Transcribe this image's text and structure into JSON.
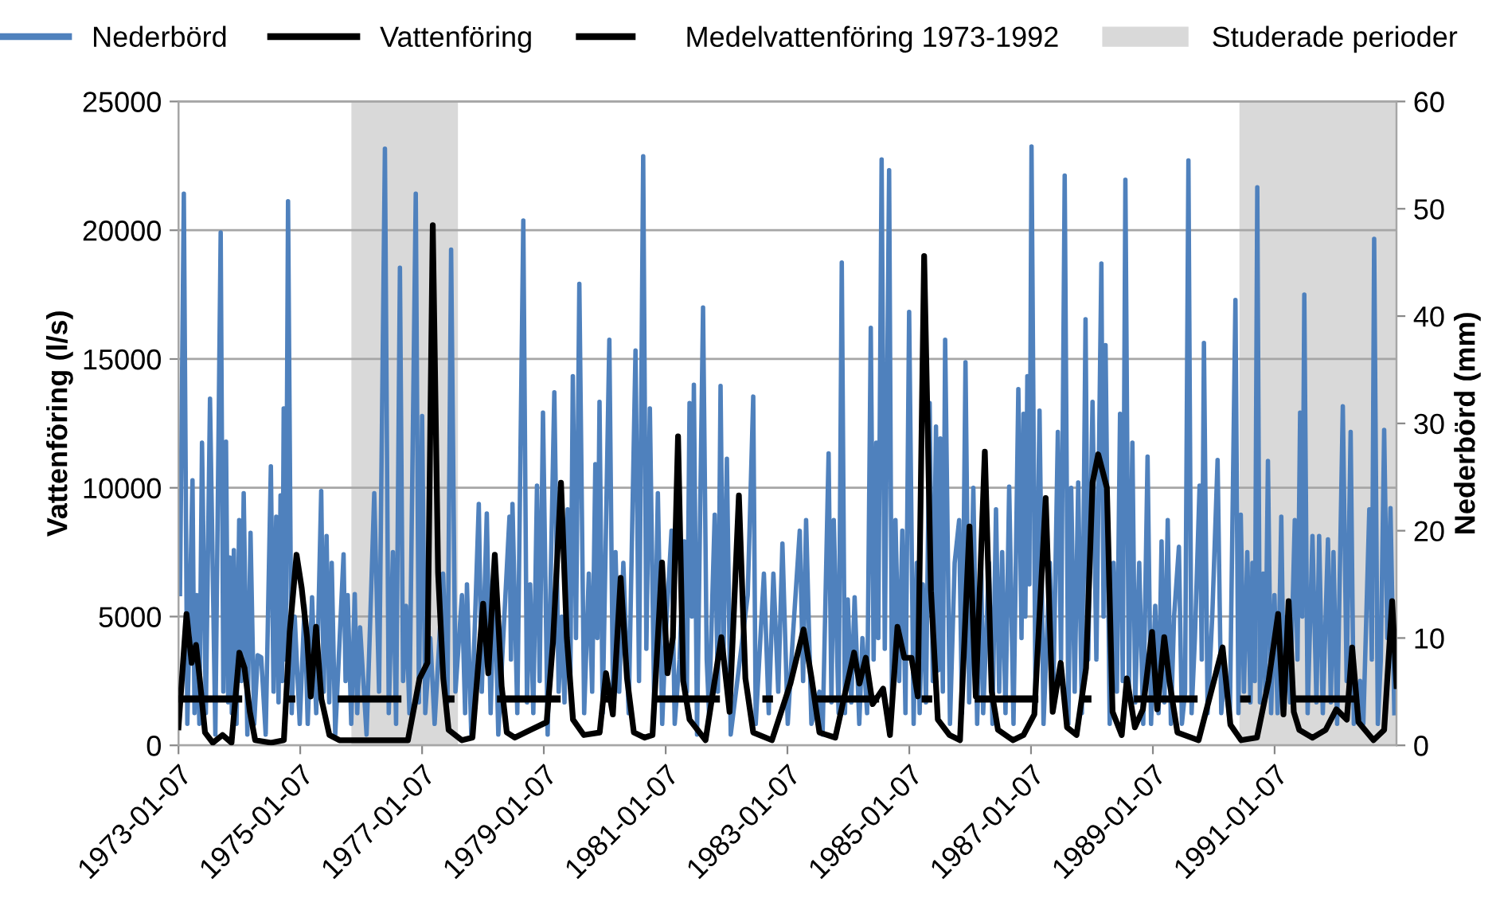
{
  "chart_data": {
    "type": "line",
    "ylabel": "Vattenföring (l/s)",
    "y2label": "Nederbörd (mm)",
    "xlim": [
      "1973-01-07",
      "1993-01-07"
    ],
    "xticks": [
      {
        "value": "1973-01-07",
        "label": "1973-01-07"
      },
      {
        "value": "1975-01-07",
        "label": "1975-01-07"
      },
      {
        "value": "1977-01-07",
        "label": "1977-01-07"
      },
      {
        "value": "1979-01-07",
        "label": "1979-01-07"
      },
      {
        "value": "1981-01-07",
        "label": "1981-01-07"
      },
      {
        "value": "1983-01-07",
        "label": "1983-01-07"
      },
      {
        "value": "1985-01-07",
        "label": "1985-01-07"
      },
      {
        "value": "1987-01-07",
        "label": "1987-01-07"
      },
      {
        "value": "1989-01-07",
        "label": "1989-01-07"
      },
      {
        "value": "1991-01-07",
        "label": "1991-01-07"
      }
    ],
    "ylim": [
      0,
      25000
    ],
    "yticks": [
      0,
      5000,
      10000,
      15000,
      20000,
      25000
    ],
    "y2lim": [
      0,
      60
    ],
    "y2ticks": [
      0,
      10,
      20,
      30,
      40,
      50,
      60
    ],
    "grid": "y",
    "legend": "top",
    "bands": [
      {
        "axis": "x",
        "from": "1975-11-10",
        "to": "1977-08-10",
        "label": "Studerade perioder",
        "color": "#d9d9d9"
      },
      {
        "axis": "x",
        "from": "1990-06-10",
        "to": "1993-01-07",
        "color": "#d9d9d9"
      }
    ],
    "series": [
      {
        "name": "Nederbörd",
        "color": "#4f81bd",
        "axis": "y2",
        "line_style": "solid",
        "x": [
          "1973-01-16",
          "1973-02-08",
          "1973-03-01",
          "1973-04-01",
          "1973-04-13",
          "1973-04-26",
          "1973-05-12",
          "1973-05-28",
          "1973-06-20",
          "1973-07-15",
          "1973-08-16",
          "1973-09-17",
          "1973-10-03",
          "1973-10-19",
          "1973-11-01",
          "1973-11-10",
          "1973-11-23",
          "1973-12-05",
          "1973-12-21",
          "1974-01-06",
          "1974-01-19",
          "1974-02-02",
          "1974-02-24",
          "1974-03-15",
          "1974-04-06",
          "1974-04-27",
          "1974-05-18",
          "1974-06-14",
          "1974-07-15",
          "1974-07-31",
          "1974-08-16",
          "1974-08-30",
          "1974-09-11",
          "1974-09-21",
          "1974-09-30",
          "1974-10-12",
          "1974-10-26",
          "1974-11-17",
          "1974-12-05",
          "1975-01-04",
          "1975-02-02",
          "1975-02-21",
          "1975-03-19",
          "1975-04-13",
          "1975-05-13",
          "1975-05-28",
          "1975-06-14",
          "1975-06-30",
          "1975-07-15",
          "1975-08-05",
          "1975-09-24",
          "1975-10-06",
          "1975-10-19",
          "1975-11-09",
          "1975-11-30",
          "1975-12-15",
          "1976-01-01",
          "1976-02-09",
          "1976-03-26",
          "1976-04-24",
          "1976-05-29",
          "1976-06-21",
          "1976-07-16",
          "1976-08-04",
          "1976-08-27",
          "1976-09-15",
          "1976-10-03",
          "1976-10-23",
          "1976-11-30",
          "1976-12-19",
          "1977-01-07",
          "1977-01-26",
          "1977-02-25",
          "1977-03-23",
          "1977-05-13",
          "1977-06-08",
          "1977-06-30",
          "1977-07-26",
          "1977-09-03",
          "1977-09-22",
          "1977-10-03",
          "1977-10-29",
          "1977-12-13",
          "1977-12-31",
          "1978-01-30",
          "1978-02-22",
          "1978-03-17",
          "1978-04-09",
          "1978-06-15",
          "1978-06-24",
          "1978-07-03",
          "1978-08-01",
          "1978-09-06",
          "1978-09-28",
          "1978-10-17",
          "1978-11-05",
          "1978-11-27",
          "1978-12-13",
          "1979-01-02",
          "1979-01-30",
          "1979-03-11",
          "1979-04-06",
          "1979-04-25",
          "1979-05-11",
          "1979-05-30",
          "1979-06-15",
          "1979-06-30",
          "1979-07-19",
          "1979-08-08",
          "1979-09-06",
          "1979-10-04",
          "1979-10-24",
          "1979-11-12",
          "1979-11-24",
          "1979-12-07",
          "1979-12-26",
          "1980-02-04",
          "1980-02-26",
          "1980-03-12",
          "1980-04-03",
          "1980-04-28",
          "1980-05-30",
          "1980-07-10",
          "1980-07-31",
          "1980-08-25",
          "1980-09-13",
          "1980-10-04",
          "1980-10-30",
          "1980-11-21",
          "1980-12-17",
          "1981-01-06",
          "1981-02-11",
          "1981-03-02",
          "1981-03-31",
          "1981-04-28",
          "1981-05-14",
          "1981-05-30",
          "1981-06-13",
          "1981-06-25",
          "1981-07-14",
          "1981-08-19",
          "1981-09-10",
          "1981-09-24",
          "1981-10-28",
          "1981-11-16",
          "1981-12-02",
          "1981-12-19",
          "1982-01-09",
          "1982-02-01",
          "1982-04-13",
          "1982-05-14",
          "1982-06-16",
          "1982-07-01",
          "1982-08-19",
          "1982-09-17",
          "1982-10-15",
          "1982-11-13",
          "1982-12-08",
          "1983-01-09",
          "1983-02-08",
          "1983-03-22",
          "1983-04-11",
          "1983-04-29",
          "1983-05-31",
          "1983-07-18",
          "1983-08-06",
          "1983-09-11",
          "1983-09-28",
          "1983-10-12",
          "1983-11-10",
          "1983-11-29",
          "1983-12-18",
          "1984-01-04",
          "1984-01-25",
          "1984-02-14",
          "1984-03-13",
          "1984-04-01",
          "1984-04-29",
          "1984-05-21",
          "1984-06-07",
          "1984-06-23",
          "1984-07-05",
          "1984-07-25",
          "1984-08-13",
          "1984-09-08",
          "1984-09-25",
          "1984-10-16",
          "1984-11-07",
          "1984-11-26",
          "1984-12-15",
          "1985-01-06",
          "1985-02-02",
          "1985-02-21",
          "1985-03-10",
          "1985-03-29",
          "1985-04-17",
          "1985-05-09",
          "1985-05-28",
          "1985-06-16",
          "1985-06-30",
          "1985-07-12",
          "1985-07-27",
          "1985-08-10",
          "1985-09-08",
          "1985-10-06",
          "1985-11-02",
          "1985-11-19",
          "1985-12-10",
          "1986-01-01",
          "1986-01-26",
          "1986-02-18",
          "1986-03-14",
          "1986-03-26",
          "1986-04-30",
          "1986-05-21",
          "1986-06-11",
          "1986-06-30",
          "1986-07-18",
          "1986-08-07",
          "1986-08-29",
          "1986-09-24",
          "1986-10-23",
          "1986-11-11",
          "1986-11-23",
          "1986-12-04",
          "1986-12-16",
          "1986-12-28",
          "1987-01-10",
          "1987-02-03",
          "1987-02-27",
          "1987-03-23",
          "1987-04-30",
          "1987-05-21",
          "1987-06-17",
          "1987-07-06",
          "1987-07-28",
          "1987-08-19",
          "1987-09-05",
          "1987-09-26",
          "1987-10-17",
          "1987-11-08",
          "1987-11-30",
          "1987-12-16",
          "1988-01-11",
          "1988-02-03",
          "1988-03-04",
          "1988-03-17",
          "1988-03-29",
          "1988-04-23",
          "1988-05-16",
          "1988-06-05",
          "1988-06-24",
          "1988-07-10",
          "1988-07-26",
          "1988-08-16",
          "1988-09-06",
          "1988-09-23",
          "1988-10-17",
          "1988-11-10",
          "1988-12-06",
          "1988-12-27",
          "1989-01-21",
          "1989-02-10",
          "1989-02-28",
          "1989-03-17",
          "1989-04-06",
          "1989-04-25",
          "1989-05-14",
          "1989-06-12",
          "1989-06-30",
          "1989-07-19",
          "1989-08-08",
          "1989-08-27",
          "1989-09-16",
          "1989-10-14",
          "1989-10-27",
          "1989-11-09",
          "1989-12-01",
          "1989-12-29",
          "1990-01-30",
          "1990-02-21",
          "1990-03-14",
          "1990-04-13",
          "1990-05-17",
          "1990-06-04",
          "1990-06-18",
          "1990-07-07",
          "1990-07-27",
          "1990-08-15",
          "1990-08-27",
          "1990-09-10",
          "1990-09-25",
          "1990-10-11",
          "1990-10-30",
          "1990-11-12",
          "1990-11-28",
          "1990-12-17",
          "1991-01-06",
          "1991-01-25",
          "1991-02-16",
          "1991-03-02",
          "1991-03-21",
          "1991-04-10",
          "1991-05-08",
          "1991-05-24",
          "1991-06-09",
          "1991-06-22",
          "1991-07-04",
          "1991-07-24",
          "1991-08-22",
          "1991-09-15",
          "1991-10-01",
          "1991-10-23",
          "1991-11-23",
          "1991-12-10",
          "1991-12-26",
          "1992-01-17",
          "1992-02-20",
          "1992-03-14",
          "1992-04-07",
          "1992-04-26",
          "1992-06-03",
          "1992-06-22",
          "1992-07-28",
          "1992-08-12",
          "1992-08-26",
          "1992-09-17",
          "1992-10-05",
          "1992-10-25",
          "1992-11-13",
          "1992-12-02",
          "1992-12-25"
        ],
        "values": [
          14.1,
          51.4,
          2,
          24.7,
          3,
          14,
          2,
          28.2,
          3,
          32.3,
          1,
          47.8,
          5,
          28.3,
          4,
          17.5,
          3,
          18.2,
          2,
          21,
          6,
          23.5,
          1,
          19.8,
          2,
          8.4,
          8.2,
          1,
          26,
          5,
          21.3,
          4,
          23.3,
          6,
          31.4,
          8,
          50.7,
          3,
          12,
          2,
          13,
          2,
          13.8,
          3,
          23.7,
          5,
          19.5,
          4,
          17,
          1,
          17.8,
          6,
          14,
          2,
          14.1,
          3,
          11,
          1,
          23.5,
          5,
          55.6,
          3,
          18,
          2,
          44.5,
          6,
          13,
          3,
          51.4,
          4,
          30.7,
          3,
          10,
          2,
          16,
          4,
          46.2,
          5,
          14,
          3,
          15,
          1,
          22.5,
          5,
          21.6,
          3,
          16,
          1,
          21.3,
          8,
          22.5,
          3,
          48.9,
          4,
          15,
          3,
          24.2,
          6,
          31,
          1,
          32.9,
          5,
          12,
          4,
          22,
          6,
          34.4,
          10,
          43,
          3,
          16,
          5,
          26.2,
          10,
          32,
          3,
          37.8,
          4,
          18,
          5,
          17,
          3,
          36.8,
          6,
          54.9,
          9,
          31.4,
          4,
          23.5,
          2,
          10,
          20,
          2,
          8,
          19,
          5,
          31.9,
          12,
          33.6,
          1,
          40.8,
          8,
          3,
          21.5,
          5,
          33.5,
          8,
          26.7,
          1,
          10,
          14,
          32.5,
          2,
          16,
          3,
          16,
          5,
          18.8,
          2,
          10,
          20,
          6,
          21,
          2,
          5,
          1,
          27.2,
          4,
          21,
          3,
          45,
          3,
          13.6,
          4,
          13.8,
          2,
          10,
          3,
          38.9,
          8,
          28.2,
          10,
          54.6,
          9,
          53.6,
          4,
          21,
          6,
          20,
          3,
          40.4,
          2,
          17,
          3,
          15,
          4,
          31.9,
          6,
          29.7,
          7,
          28.6,
          5,
          37.8,
          2,
          17,
          21,
          3,
          35.7,
          4,
          24,
          2,
          17,
          3,
          17,
          2,
          22,
          5,
          18,
          3,
          24.1,
          2,
          33.2,
          10,
          30.9,
          12,
          34.4,
          15,
          55.8,
          4,
          31.2,
          2,
          17,
          5,
          29.2,
          8,
          53.1,
          2,
          24,
          5,
          24.5,
          3,
          39.7,
          8,
          32,
          8,
          44.9,
          12,
          37.3,
          2,
          17,
          5,
          30.9,
          6,
          52.7,
          5,
          28.2,
          4,
          17,
          2,
          26.9,
          2,
          13,
          3,
          19,
          4,
          21,
          2,
          12,
          18.5,
          2,
          5,
          54.5,
          3,
          10,
          24.2,
          8,
          37.5,
          3,
          12,
          26.6,
          3,
          7,
          2,
          41.5,
          3,
          21.5,
          5,
          18,
          4,
          17,
          6,
          52,
          4,
          16,
          5,
          26.5,
          3,
          14,
          3,
          21.3,
          6,
          12,
          4,
          21,
          8,
          31,
          12,
          42,
          3,
          19.5,
          4,
          19.5,
          3,
          19.2,
          4,
          18,
          2,
          31.6,
          6,
          29.2,
          2,
          6,
          2,
          22,
          8,
          47.2,
          2,
          8,
          29.4,
          10,
          22.1,
          3
        ]
      },
      {
        "name": "Vattenföring",
        "color": "#000000",
        "axis": "y",
        "line_style": "solid",
        "x": [
          "1973-01-07",
          "1973-02-24",
          "1973-03-27",
          "1973-04-22",
          "1973-05-14",
          "1973-06-15",
          "1973-08-01",
          "1973-09-28",
          "1973-11-21",
          "1974-01-07",
          "1974-02-07",
          "1974-03-11",
          "1974-04-12",
          "1974-07-16",
          "1974-10-01",
          "1974-11-05",
          "1974-12-16",
          "1975-01-16",
          "1975-02-17",
          "1975-03-11",
          "1975-04-12",
          "1975-05-14",
          "1975-07-01",
          "1975-08-30",
          "1976-02-08",
          "1976-07-01",
          "1976-10-14",
          "1976-12-23",
          "1977-02-08",
          "1977-03-12",
          "1977-04-13",
          "1977-05-14",
          "1977-06-15",
          "1977-09-03",
          "1977-11-05",
          "1978-01-08",
          "1978-02-08",
          "1978-03-19",
          "1978-04-29",
          "1978-05-30",
          "1978-07-17",
          "1978-10-20",
          "1979-01-24",
          "1979-03-03",
          "1979-04-20",
          "1979-05-25",
          "1979-07-01",
          "1979-09-04",
          "1979-12-08",
          "1980-01-15",
          "1980-02-25",
          "1980-04-12",
          "1980-05-20",
          "1980-06-30",
          "1980-09-02",
          "1980-10-20",
          "1980-12-16",
          "1981-01-18",
          "1981-02-19",
          "1981-03-22",
          "1981-04-22",
          "1981-05-30",
          "1981-09-03",
          "1981-12-07",
          "1982-01-25",
          "1982-03-22",
          "1982-04-30",
          "1982-06-16",
          "1982-10-06",
          "1983-01-25",
          "1983-04-14",
          "1983-06-01",
          "1983-07-18",
          "1983-10-21",
          "1984-02-11",
          "1984-03-14",
          "1984-04-21",
          "1984-06-01",
          "1984-08-03",
          "1984-09-13",
          "1984-10-28",
          "1984-12-08",
          "1985-01-20",
          "1985-02-27",
          "1985-04-06",
          "1985-05-17",
          "1985-06-27",
          "1985-09-05",
          "1985-11-07",
          "1986-01-03",
          "1986-02-10",
          "1986-04-05",
          "1986-05-16",
          "1986-06-23",
          "1986-09-21",
          "1986-11-23",
          "1987-01-27",
          "1987-04-05",
          "1987-05-17",
          "1987-07-04",
          "1987-08-11",
          "1987-10-07",
          "1987-12-03",
          "1988-01-11",
          "1988-02-14",
          "1988-04-06",
          "1988-05-10",
          "1988-07-04",
          "1988-08-04",
          "1988-09-21",
          "1988-11-08",
          "1989-01-02",
          "1989-02-02",
          "1989-03-16",
          "1989-04-16",
          "1989-06-03",
          "1989-10-08",
          "1990-03-01",
          "1990-04-17",
          "1990-06-20",
          "1990-09-23",
          "1990-12-02",
          "1991-01-28",
          "1991-03-01",
          "1991-04-01",
          "1991-05-02",
          "1991-06-04",
          "1991-08-22",
          "1991-11-09",
          "1992-01-12",
          "1992-03-15",
          "1992-04-16",
          "1992-05-24",
          "1992-08-22",
          "1992-10-25",
          "1992-12-12",
          "1993-01-07"
        ],
        "values": [
          700,
          5100,
          3200,
          3900,
          2600,
          500,
          100,
          400,
          100,
          3600,
          3000,
          1300,
          200,
          100,
          200,
          4400,
          7400,
          6100,
          4200,
          1900,
          4600,
          1800,
          400,
          200,
          200,
          200,
          200,
          2600,
          3200,
          20200,
          6700,
          2600,
          600,
          200,
          300,
          5500,
          2800,
          7400,
          2300,
          500,
          300,
          600,
          900,
          4000,
          10200,
          4200,
          1000,
          400,
          500,
          2800,
          1200,
          6500,
          2600,
          500,
          300,
          400,
          7100,
          2800,
          4200,
          12000,
          2500,
          1000,
          200,
          4200,
          1300,
          9700,
          2600,
          500,
          200,
          2400,
          4500,
          2600,
          500,
          300,
          3600,
          2400,
          3400,
          1600,
          2200,
          400,
          4600,
          3400,
          3400,
          1900,
          19000,
          6000,
          1000,
          400,
          200,
          8500,
          1900,
          11400,
          2100,
          600,
          200,
          400,
          1200,
          9600,
          1300,
          3200,
          700,
          400,
          3000,
          10200,
          11300,
          10000,
          1300,
          400,
          2600,
          700,
          1400,
          4400,
          1400,
          4200,
          2500,
          500,
          200,
          3800,
          800,
          200,
          300,
          2500,
          5100,
          1200,
          5600,
          1300,
          600,
          300,
          600,
          1400,
          1000,
          3800,
          900,
          200,
          600,
          5600,
          2300
        ]
      },
      {
        "name": "Medelvattenföring 1973-1992",
        "color": "#000000",
        "axis": "y",
        "line_style": "dashdot",
        "x": [
          "1973-01-07",
          "1993-01-07"
        ],
        "values": [
          1800,
          1800
        ]
      }
    ]
  }
}
